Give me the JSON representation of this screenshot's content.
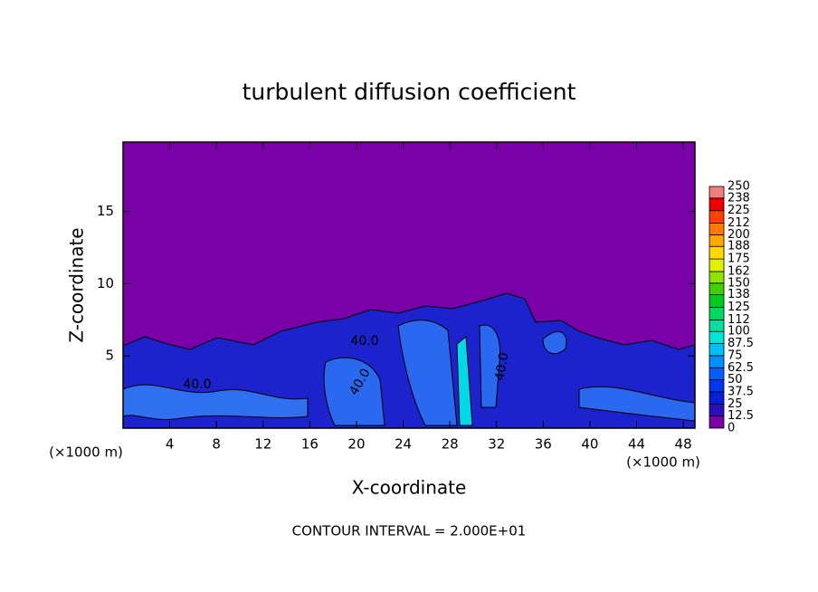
{
  "chart_data": {
    "type": "contour",
    "title": "turbulent diffusion coefficient",
    "x_label": "X-coordinate",
    "y_label": "Z-coordinate",
    "x_unit": "(×1000 m)",
    "y_unit": "(×1000 m)",
    "footer": "CONTOUR INTERVAL = 2.000E+01",
    "contour_labels": [
      "40.0",
      "40.0",
      "40.0",
      "40.0"
    ],
    "xlim": [
      0,
      49
    ],
    "xticks": [
      4,
      8,
      12,
      16,
      20,
      24,
      28,
      32,
      36,
      40,
      44,
      48
    ],
    "ylim": [
      0,
      19.8
    ],
    "yticks": [
      5,
      10,
      15
    ],
    "colorbar": {
      "ticks": [
        0,
        12.5,
        25,
        37.5,
        50,
        62.5,
        75,
        87.5,
        100,
        112,
        125,
        138,
        150,
        162,
        175,
        188,
        200,
        212,
        225,
        238,
        250
      ],
      "colors": [
        "#7a00a8",
        "#2a10b8",
        "#0a1ed8",
        "#0038f0",
        "#0060ff",
        "#0090ff",
        "#00c0f8",
        "#00e8d8",
        "#00e0a0",
        "#00d860",
        "#00cc20",
        "#40d000",
        "#90e000",
        "#e0f000",
        "#ffd800",
        "#ffa800",
        "#ff7800",
        "#ff4000",
        "#f00000",
        "#f08080"
      ]
    }
  }
}
